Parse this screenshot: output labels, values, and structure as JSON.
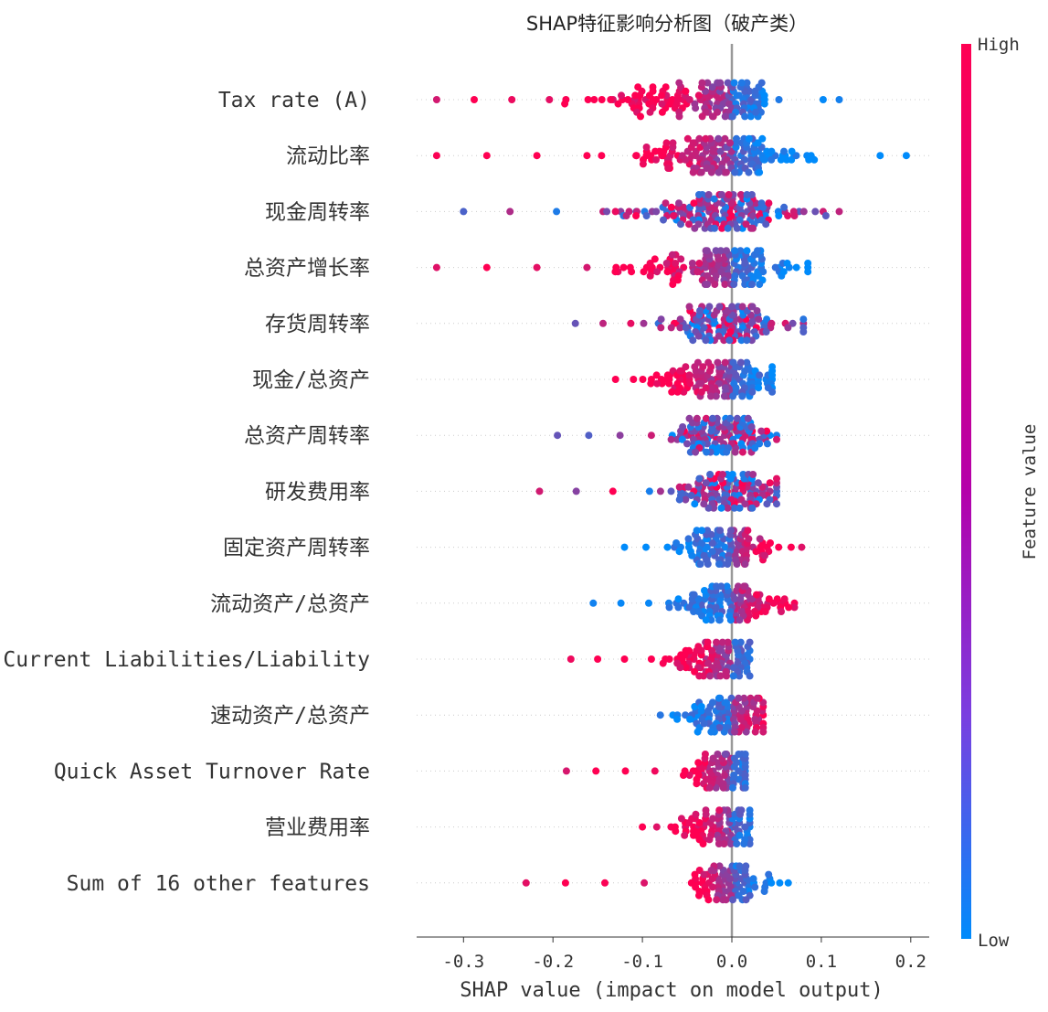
{
  "chart_data": {
    "type": "scatter",
    "subtype": "shap-beeswarm",
    "title": "SHAP特征影响分析图（破产类）",
    "xlabel": "SHAP value (impact on model output)",
    "xlim": [
      -0.35,
      0.22
    ],
    "xticks": [
      -0.3,
      -0.2,
      -0.1,
      0.0,
      0.1,
      0.2
    ],
    "xtick_labels": [
      "-0.3",
      "-0.2",
      "-0.1",
      "0.0",
      "0.1",
      "0.2"
    ],
    "colorbar": {
      "label": "Feature value",
      "high": "High",
      "low": "Low",
      "high_color": "#ff0052",
      "low_color": "#008bfb"
    },
    "features": [
      {
        "name": "Tax rate (A)",
        "min": -0.33,
        "max": 0.12,
        "spread": 0.09,
        "center": -0.12,
        "high_side": "negative"
      },
      {
        "name": "流动比率",
        "min": -0.33,
        "max": 0.195,
        "spread": 0.09,
        "center": -0.05,
        "high_side": "negative"
      },
      {
        "name": "现金周转率",
        "min": -0.3,
        "max": 0.12,
        "spread": 0.1,
        "center": -0.04,
        "high_side": "mixed"
      },
      {
        "name": "总资产增长率",
        "min": -0.33,
        "max": 0.085,
        "spread": 0.09,
        "center": -0.05,
        "high_side": "negative"
      },
      {
        "name": "存货周转率",
        "min": -0.175,
        "max": 0.08,
        "spread": 0.07,
        "center": -0.02,
        "high_side": "mixed"
      },
      {
        "name": "现金/总资产",
        "min": -0.13,
        "max": 0.045,
        "spread": 0.07,
        "center": -0.03,
        "high_side": "negative"
      },
      {
        "name": "总资产周转率",
        "min": -0.195,
        "max": 0.05,
        "spread": 0.06,
        "center": -0.02,
        "high_side": "mixed"
      },
      {
        "name": "研发费用率",
        "min": -0.215,
        "max": 0.05,
        "spread": 0.06,
        "center": -0.01,
        "high_side": "mixed"
      },
      {
        "name": "固定资产周转率",
        "min": -0.12,
        "max": 0.078,
        "spread": 0.05,
        "center": 0.0,
        "high_side": "positive"
      },
      {
        "name": "流动资产/总资产",
        "min": -0.155,
        "max": 0.07,
        "spread": 0.06,
        "center": 0.0,
        "high_side": "positive"
      },
      {
        "name": "Current Liabilities/Liability",
        "min": -0.18,
        "max": 0.02,
        "spread": 0.05,
        "center": -0.03,
        "high_side": "negative"
      },
      {
        "name": "速动资产/总资产",
        "min": -0.08,
        "max": 0.035,
        "spread": 0.045,
        "center": -0.01,
        "high_side": "positive"
      },
      {
        "name": "Quick Asset Turnover Rate",
        "min": -0.185,
        "max": 0.015,
        "spread": 0.045,
        "center": -0.02,
        "high_side": "negative"
      },
      {
        "name": "营业费用率",
        "min": -0.1,
        "max": 0.02,
        "spread": 0.04,
        "center": -0.02,
        "high_side": "negative"
      },
      {
        "name": "Sum of 16 other features",
        "min": -0.23,
        "max": 0.063,
        "spread": 0.04,
        "center": -0.01,
        "high_side": "negative"
      }
    ]
  }
}
